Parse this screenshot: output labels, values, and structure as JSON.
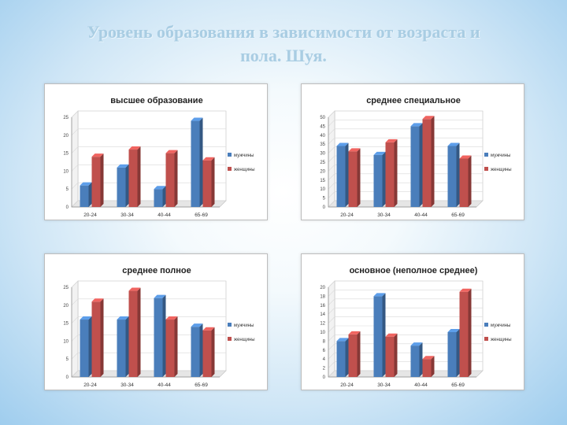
{
  "page": {
    "title_line1": "Уровень образования в зависимости от возраста и",
    "title_line2": "пола. Шуя."
  },
  "colors": {
    "series1": "#4a7ebb",
    "series2": "#c0504d",
    "background": "#ffffff",
    "grid": "#d9d9d9"
  },
  "chart_data": [
    {
      "type": "bar",
      "title": "высшее образование",
      "categories": [
        "20-24",
        "30-34",
        "40-44",
        "65-69"
      ],
      "series": [
        {
          "name": "мужчины",
          "values": [
            6,
            11,
            5,
            24
          ]
        },
        {
          "name": "женщины",
          "values": [
            14,
            16,
            15,
            13
          ]
        }
      ],
      "ylim": [
        0,
        25
      ],
      "ytick_step": 5,
      "grid": true,
      "legend": "right"
    },
    {
      "type": "bar",
      "title": "среднее специальное",
      "categories": [
        "20-24",
        "30-34",
        "40-44",
        "65-69"
      ],
      "series": [
        {
          "name": "мужчины",
          "values": [
            34,
            29,
            45,
            34
          ]
        },
        {
          "name": "женщины",
          "values": [
            31,
            36,
            49,
            27
          ]
        }
      ],
      "ylim": [
        0,
        50
      ],
      "ytick_step": 5,
      "grid": true,
      "legend": "right"
    },
    {
      "type": "bar",
      "title": "среднее полное",
      "categories": [
        "20-24",
        "30-34",
        "40-44",
        "65-69"
      ],
      "series": [
        {
          "name": "мужчины",
          "values": [
            16,
            16,
            22,
            14
          ]
        },
        {
          "name": "женщины",
          "values": [
            21,
            24,
            16,
            13
          ]
        }
      ],
      "ylim": [
        0,
        25
      ],
      "ytick_step": 5,
      "grid": true,
      "legend": "right"
    },
    {
      "type": "bar",
      "title": "основное (неполное среднее)",
      "categories": [
        "20-24",
        "30-34",
        "40-44",
        "65-69"
      ],
      "series": [
        {
          "name": "мужчины",
          "values": [
            8,
            18,
            7,
            10
          ]
        },
        {
          "name": "женщины",
          "values": [
            9.5,
            9,
            4,
            19
          ]
        }
      ],
      "ylim": [
        0,
        20
      ],
      "ytick_step": 2,
      "grid": true,
      "legend": "right"
    }
  ]
}
